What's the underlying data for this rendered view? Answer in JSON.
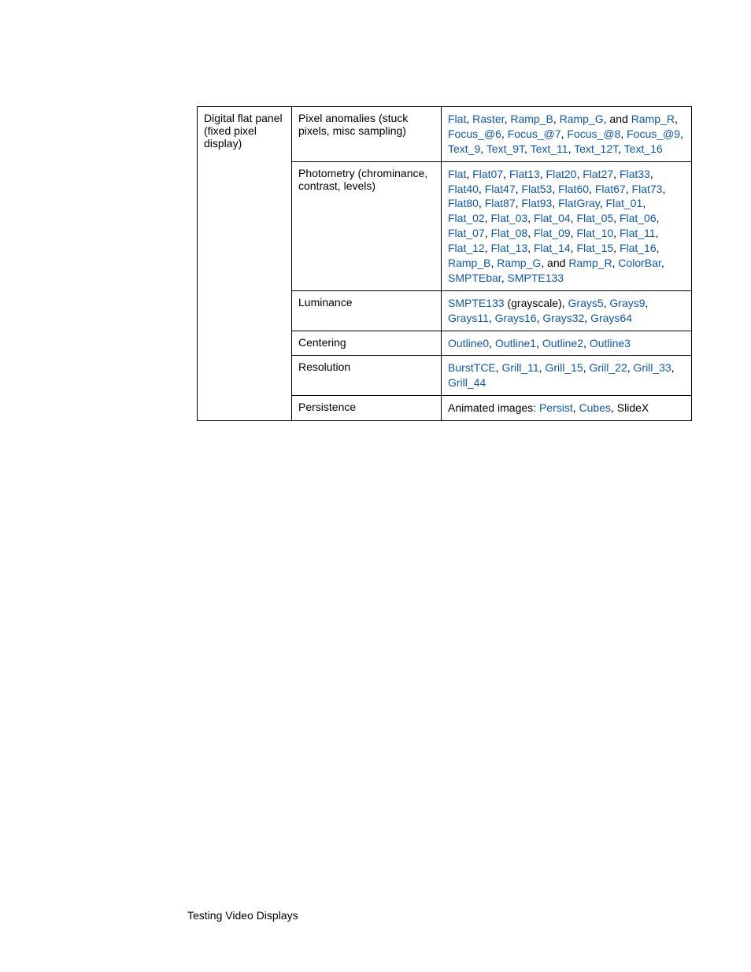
{
  "table": {
    "header_cell": "Digital flat panel (fixed pixel display)",
    "rows": [
      {
        "test": "Pixel anomalies (stuck pixels, misc sampling)",
        "content": [
          {
            "type": "link",
            "text": "Flat"
          },
          {
            "type": "plain",
            "text": ", "
          },
          {
            "type": "link",
            "text": "Raster"
          },
          {
            "type": "plain",
            "text": ", "
          },
          {
            "type": "link",
            "text": "Ramp_B"
          },
          {
            "type": "plain",
            "text": ", "
          },
          {
            "type": "link",
            "text": "Ramp_G"
          },
          {
            "type": "plain",
            "text": ", and "
          },
          {
            "type": "link",
            "text": "Ramp_R"
          },
          {
            "type": "plain",
            "text": ", "
          },
          {
            "type": "link",
            "text": "Focus_@6"
          },
          {
            "type": "plain",
            "text": ", "
          },
          {
            "type": "link",
            "text": "Focus_@7"
          },
          {
            "type": "plain",
            "text": ", "
          },
          {
            "type": "link",
            "text": "Focus_@8"
          },
          {
            "type": "plain",
            "text": ", "
          },
          {
            "type": "link",
            "text": "Focus_@9"
          },
          {
            "type": "plain",
            "text": ", "
          },
          {
            "type": "link",
            "text": "Text_9"
          },
          {
            "type": "plain",
            "text": ", "
          },
          {
            "type": "link",
            "text": "Text_9T"
          },
          {
            "type": "plain",
            "text": ", "
          },
          {
            "type": "link",
            "text": "Text_11"
          },
          {
            "type": "plain",
            "text": ", "
          },
          {
            "type": "link",
            "text": "Text_12T"
          },
          {
            "type": "plain",
            "text": ", "
          },
          {
            "type": "link",
            "text": "Text_16"
          }
        ]
      },
      {
        "test": "Photometry (chrominance, contrast, levels)",
        "content": [
          {
            "type": "link",
            "text": "Flat"
          },
          {
            "type": "plain",
            "text": ", "
          },
          {
            "type": "link",
            "text": "Flat07"
          },
          {
            "type": "plain",
            "text": ", "
          },
          {
            "type": "link",
            "text": "Flat13"
          },
          {
            "type": "plain",
            "text": ", "
          },
          {
            "type": "link",
            "text": "Flat20"
          },
          {
            "type": "plain",
            "text": ", "
          },
          {
            "type": "link",
            "text": "Flat27"
          },
          {
            "type": "plain",
            "text": ", "
          },
          {
            "type": "link",
            "text": "Flat33"
          },
          {
            "type": "plain",
            "text": ", "
          },
          {
            "type": "link",
            "text": "Flat40"
          },
          {
            "type": "plain",
            "text": ", "
          },
          {
            "type": "link",
            "text": "Flat47"
          },
          {
            "type": "plain",
            "text": ", "
          },
          {
            "type": "link",
            "text": "Flat53"
          },
          {
            "type": "plain",
            "text": ", "
          },
          {
            "type": "link",
            "text": "Flat60"
          },
          {
            "type": "plain",
            "text": ", "
          },
          {
            "type": "link",
            "text": "Flat67"
          },
          {
            "type": "plain",
            "text": ", "
          },
          {
            "type": "link",
            "text": "Flat73"
          },
          {
            "type": "plain",
            "text": ", "
          },
          {
            "type": "link",
            "text": "Flat80"
          },
          {
            "type": "plain",
            "text": ", "
          },
          {
            "type": "link",
            "text": "Flat87"
          },
          {
            "type": "plain",
            "text": ", "
          },
          {
            "type": "link",
            "text": "Flat93"
          },
          {
            "type": "plain",
            "text": ", "
          },
          {
            "type": "link",
            "text": "FlatGray"
          },
          {
            "type": "plain",
            "text": ", "
          },
          {
            "type": "link",
            "text": "Flat_01"
          },
          {
            "type": "plain",
            "text": ", "
          },
          {
            "type": "link",
            "text": "Flat_02"
          },
          {
            "type": "plain",
            "text": ", "
          },
          {
            "type": "link",
            "text": "Flat_03"
          },
          {
            "type": "plain",
            "text": ", "
          },
          {
            "type": "link",
            "text": "Flat_04"
          },
          {
            "type": "plain",
            "text": ", "
          },
          {
            "type": "link",
            "text": "Flat_05"
          },
          {
            "type": "plain",
            "text": ", "
          },
          {
            "type": "link",
            "text": "Flat_06"
          },
          {
            "type": "plain",
            "text": ", "
          },
          {
            "type": "link",
            "text": "Flat_07"
          },
          {
            "type": "plain",
            "text": ", "
          },
          {
            "type": "link",
            "text": "Flat_08"
          },
          {
            "type": "plain",
            "text": ", "
          },
          {
            "type": "link",
            "text": "Flat_09"
          },
          {
            "type": "plain",
            "text": ", "
          },
          {
            "type": "link",
            "text": "Flat_10"
          },
          {
            "type": "plain",
            "text": ", "
          },
          {
            "type": "link",
            "text": "Flat_11"
          },
          {
            "type": "plain",
            "text": ", "
          },
          {
            "type": "link",
            "text": "Flat_12"
          },
          {
            "type": "plain",
            "text": ", "
          },
          {
            "type": "link",
            "text": "Flat_13"
          },
          {
            "type": "plain",
            "text": ", "
          },
          {
            "type": "link",
            "text": "Flat_14"
          },
          {
            "type": "plain",
            "text": ", "
          },
          {
            "type": "link",
            "text": "Flat_15"
          },
          {
            "type": "plain",
            "text": ", "
          },
          {
            "type": "link",
            "text": "Flat_16"
          },
          {
            "type": "plain",
            "text": ", "
          },
          {
            "type": "link",
            "text": "Ramp_B"
          },
          {
            "type": "plain",
            "text": ", "
          },
          {
            "type": "link",
            "text": "Ramp_G"
          },
          {
            "type": "plain",
            "text": ", and "
          },
          {
            "type": "link",
            "text": "Ramp_R"
          },
          {
            "type": "plain",
            "text": ", "
          },
          {
            "type": "link",
            "text": "ColorBar"
          },
          {
            "type": "plain",
            "text": ", "
          },
          {
            "type": "link",
            "text": "SMPTEbar"
          },
          {
            "type": "plain",
            "text": ", "
          },
          {
            "type": "link",
            "text": "SMPTE133"
          }
        ]
      },
      {
        "test": "Luminance",
        "content": [
          {
            "type": "link",
            "text": "SMPTE133"
          },
          {
            "type": "plain",
            "text": " (grayscale), "
          },
          {
            "type": "link",
            "text": "Grays5"
          },
          {
            "type": "plain",
            "text": ", "
          },
          {
            "type": "link",
            "text": "Grays9"
          },
          {
            "type": "plain",
            "text": ", "
          },
          {
            "type": "link",
            "text": "Grays11"
          },
          {
            "type": "plain",
            "text": ", "
          },
          {
            "type": "link",
            "text": "Grays16"
          },
          {
            "type": "plain",
            "text": ", "
          },
          {
            "type": "link",
            "text": "Grays32"
          },
          {
            "type": "plain",
            "text": ", "
          },
          {
            "type": "link",
            "text": "Grays64"
          }
        ]
      },
      {
        "test": "Centering",
        "content": [
          {
            "type": "link",
            "text": "Outline0"
          },
          {
            "type": "plain",
            "text": ", "
          },
          {
            "type": "link",
            "text": "Outline1"
          },
          {
            "type": "plain",
            "text": ", "
          },
          {
            "type": "link",
            "text": "Outline2"
          },
          {
            "type": "plain",
            "text": ", "
          },
          {
            "type": "link",
            "text": "Outline3"
          }
        ]
      },
      {
        "test": "Resolution",
        "content": [
          {
            "type": "link",
            "text": "BurstTCE"
          },
          {
            "type": "plain",
            "text": ", "
          },
          {
            "type": "link",
            "text": "Grill_11"
          },
          {
            "type": "plain",
            "text": ", "
          },
          {
            "type": "link",
            "text": "Grill_15"
          },
          {
            "type": "plain",
            "text": ", "
          },
          {
            "type": "link",
            "text": "Grill_22"
          },
          {
            "type": "plain",
            "text": ", "
          },
          {
            "type": "link",
            "text": "Grill_33"
          },
          {
            "type": "plain",
            "text": ", "
          },
          {
            "type": "link",
            "text": "Grill_44"
          }
        ]
      },
      {
        "test": "Persistence",
        "content": [
          {
            "type": "plain",
            "text": "Animated images: "
          },
          {
            "type": "link",
            "text": "Persist"
          },
          {
            "type": "plain",
            "text": ", "
          },
          {
            "type": "link",
            "text": "Cubes"
          },
          {
            "type": "plain",
            "text": ", SlideX"
          }
        ]
      }
    ]
  },
  "footer": "Testing Video Displays",
  "colors": {
    "link_color": "#0d58b2",
    "text_color": "#000000",
    "border_color": "#000000",
    "background_color": "#ffffff"
  },
  "typography": {
    "table_fontsize": 14,
    "footer_fontsize": 14,
    "font_family": "Arial, Helvetica, sans-serif"
  }
}
